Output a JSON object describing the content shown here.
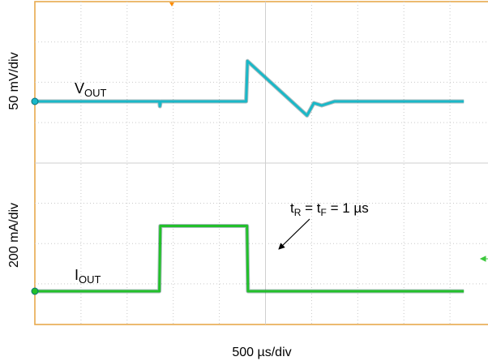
{
  "chart_data": {
    "type": "line",
    "title": "",
    "xlabel": "500 µs/div",
    "x_units_per_div": 500,
    "x_unit": "µs",
    "x_range_div": [
      0,
      9.3
    ],
    "grid": true,
    "series": [
      {
        "name": "VOUT",
        "label_main": "V",
        "label_sub": "OUT",
        "color": "#19b8c8",
        "scale_label": "50 mV/div",
        "unit": "mV",
        "units_per_div": 50,
        "points": [
          [
            0,
            0
          ],
          [
            2.7,
            0
          ],
          [
            2.71,
            -0.12
          ],
          [
            2.73,
            0
          ],
          [
            4.58,
            0
          ],
          [
            4.61,
            1.0
          ],
          [
            5.9,
            -0.35
          ],
          [
            6.05,
            -0.04
          ],
          [
            6.22,
            -0.1
          ],
          [
            6.5,
            0
          ],
          [
            9.3,
            0
          ]
        ]
      },
      {
        "name": "IOUT",
        "label_main": "I",
        "label_sub": "OUT",
        "color": "#22c02a",
        "scale_label": "200 mA/div",
        "unit": "mA",
        "units_per_div": 200,
        "points": [
          [
            0,
            0
          ],
          [
            2.7,
            0
          ],
          [
            2.72,
            1.62
          ],
          [
            4.6,
            1.62
          ],
          [
            4.62,
            0
          ],
          [
            9.3,
            0
          ]
        ]
      }
    ],
    "annotation": {
      "main_1": "t",
      "sub_1": "R",
      "mid": " = t",
      "sub_2": "F",
      "tail": " = 1 µs",
      "target_x_div": 4.62,
      "target_y_div": 0.8
    }
  }
}
